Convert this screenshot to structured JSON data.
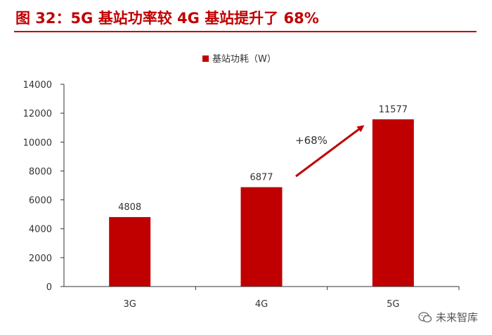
{
  "figure": {
    "title": "图 32：5G 基站功率较 4G 基站提升了 68%",
    "watermark": "未来智库"
  },
  "chart_data": {
    "type": "bar",
    "categories": [
      "3G",
      "4G",
      "5G"
    ],
    "series": [
      {
        "name": "基站功耗（W）",
        "values": [
          4808,
          6877,
          11577
        ]
      }
    ],
    "ylim": [
      0,
      14000
    ],
    "yticks": [
      0,
      2000,
      4000,
      6000,
      8000,
      10000,
      12000,
      14000
    ],
    "data_labels": [
      "4808",
      "6877",
      "11577"
    ],
    "annotation": "+68%",
    "legend_position": "top-center",
    "grid": false,
    "colors": {
      "bar": "#c00000",
      "axis": "#333333",
      "title": "#c00000"
    }
  }
}
